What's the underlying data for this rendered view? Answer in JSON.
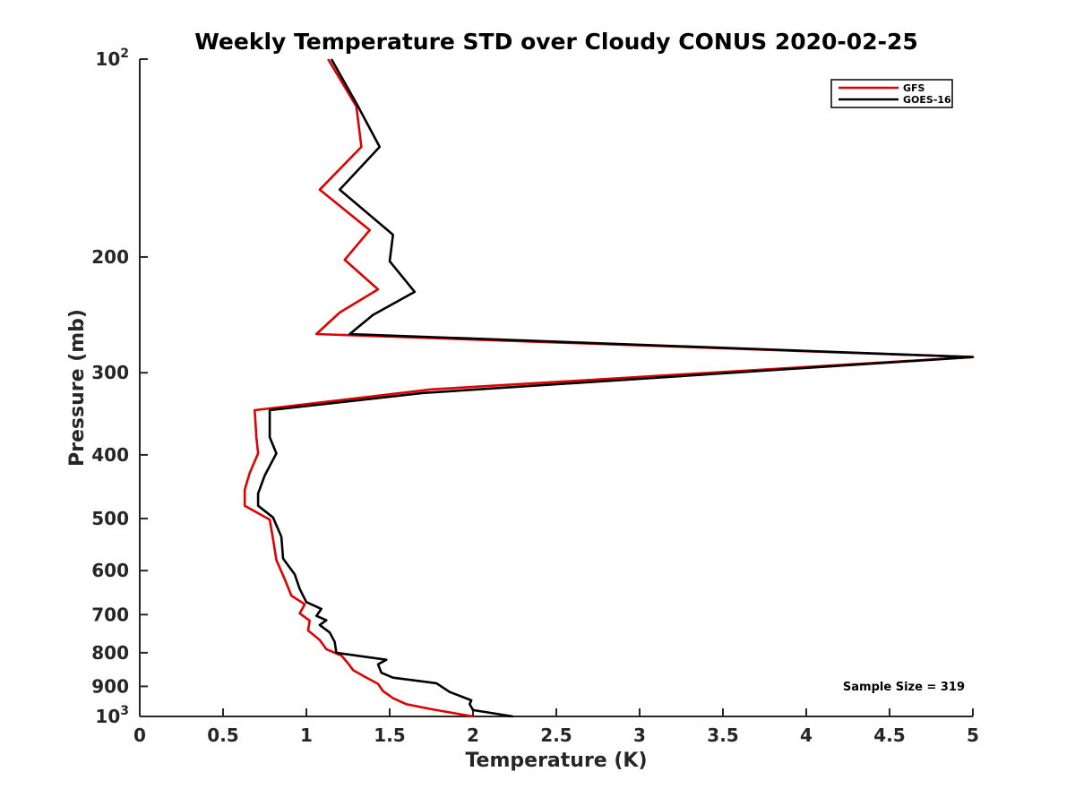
{
  "chart_data": {
    "type": "line",
    "title": "Weekly Temperature STD over Cloudy CONUS 2020-02-25",
    "xlabel": "Temperature (K)",
    "ylabel": "Pressure (mb)",
    "xlim": [
      0,
      5
    ],
    "ylim": [
      100,
      1000
    ],
    "yscale": "log",
    "yreverse": true,
    "x_ticks": [
      {
        "value": 0,
        "label": "0"
      },
      {
        "value": 0.5,
        "label": "0.5"
      },
      {
        "value": 1,
        "label": "1"
      },
      {
        "value": 1.5,
        "label": "1.5"
      },
      {
        "value": 2,
        "label": "2"
      },
      {
        "value": 2.5,
        "label": "2.5"
      },
      {
        "value": 3,
        "label": "3"
      },
      {
        "value": 3.5,
        "label": "3.5"
      },
      {
        "value": 4,
        "label": "4"
      },
      {
        "value": 4.5,
        "label": "4.5"
      },
      {
        "value": 5,
        "label": "5"
      }
    ],
    "y_ticks": [
      {
        "value": 100,
        "base": "10",
        "exp": "2"
      },
      {
        "value": 200,
        "label": "200"
      },
      {
        "value": 300,
        "label": "300"
      },
      {
        "value": 400,
        "label": "400"
      },
      {
        "value": 500,
        "label": "500"
      },
      {
        "value": 600,
        "label": "600"
      },
      {
        "value": 700,
        "label": "700"
      },
      {
        "value": 800,
        "label": "800"
      },
      {
        "value": 900,
        "label": "900"
      },
      {
        "value": 1000,
        "base": "10",
        "exp": "3"
      }
    ],
    "legend_position": "top-right",
    "annotation": "Sample Size = 319",
    "series": [
      {
        "name": "GFS",
        "color": "#e00000",
        "points": [
          [
            1.13,
            100
          ],
          [
            1.3,
            118
          ],
          [
            1.33,
            136
          ],
          [
            1.08,
            158
          ],
          [
            1.38,
            182
          ],
          [
            1.23,
            202
          ],
          [
            1.43,
            224
          ],
          [
            1.2,
            243
          ],
          [
            1.06,
            262
          ],
          [
            5.0,
            284
          ],
          [
            1.75,
            318
          ],
          [
            0.69,
            342
          ],
          [
            0.7,
            376
          ],
          [
            0.71,
            398
          ],
          [
            0.66,
            426
          ],
          [
            0.63,
            452
          ],
          [
            0.63,
            478
          ],
          [
            0.78,
            502
          ],
          [
            0.8,
            537
          ],
          [
            0.82,
            578
          ],
          [
            0.87,
            618
          ],
          [
            0.91,
            655
          ],
          [
            0.99,
            675
          ],
          [
            0.96,
            697
          ],
          [
            1.02,
            715
          ],
          [
            1.01,
            740
          ],
          [
            1.08,
            765
          ],
          [
            1.12,
            790
          ],
          [
            1.21,
            808
          ],
          [
            1.25,
            830
          ],
          [
            1.28,
            850
          ],
          [
            1.35,
            870
          ],
          [
            1.43,
            892
          ],
          [
            1.46,
            915
          ],
          [
            1.52,
            938
          ],
          [
            1.6,
            958
          ],
          [
            1.75,
            975
          ],
          [
            2.0,
            1000
          ]
        ]
      },
      {
        "name": "GOES-16",
        "color": "#000000",
        "points": [
          [
            1.15,
            100
          ],
          [
            1.31,
            118
          ],
          [
            1.44,
            136
          ],
          [
            1.2,
            158
          ],
          [
            1.52,
            185
          ],
          [
            1.5,
            203
          ],
          [
            1.65,
            226
          ],
          [
            1.4,
            245
          ],
          [
            1.26,
            262
          ],
          [
            5.0,
            284
          ],
          [
            1.7,
            322
          ],
          [
            0.78,
            342
          ],
          [
            0.78,
            376
          ],
          [
            0.82,
            398
          ],
          [
            0.75,
            430
          ],
          [
            0.71,
            458
          ],
          [
            0.71,
            478
          ],
          [
            0.8,
            498
          ],
          [
            0.85,
            533
          ],
          [
            0.86,
            575
          ],
          [
            0.93,
            608
          ],
          [
            0.96,
            640
          ],
          [
            1.0,
            670
          ],
          [
            1.09,
            686
          ],
          [
            1.06,
            703
          ],
          [
            1.12,
            714
          ],
          [
            1.08,
            726
          ],
          [
            1.14,
            745
          ],
          [
            1.17,
            770
          ],
          [
            1.18,
            800
          ],
          [
            1.48,
            820
          ],
          [
            1.43,
            833
          ],
          [
            1.45,
            858
          ],
          [
            1.52,
            873
          ],
          [
            1.78,
            890
          ],
          [
            1.86,
            918
          ],
          [
            1.99,
            945
          ],
          [
            1.98,
            958
          ],
          [
            2.0,
            978
          ],
          [
            2.24,
            1000
          ]
        ]
      }
    ]
  }
}
